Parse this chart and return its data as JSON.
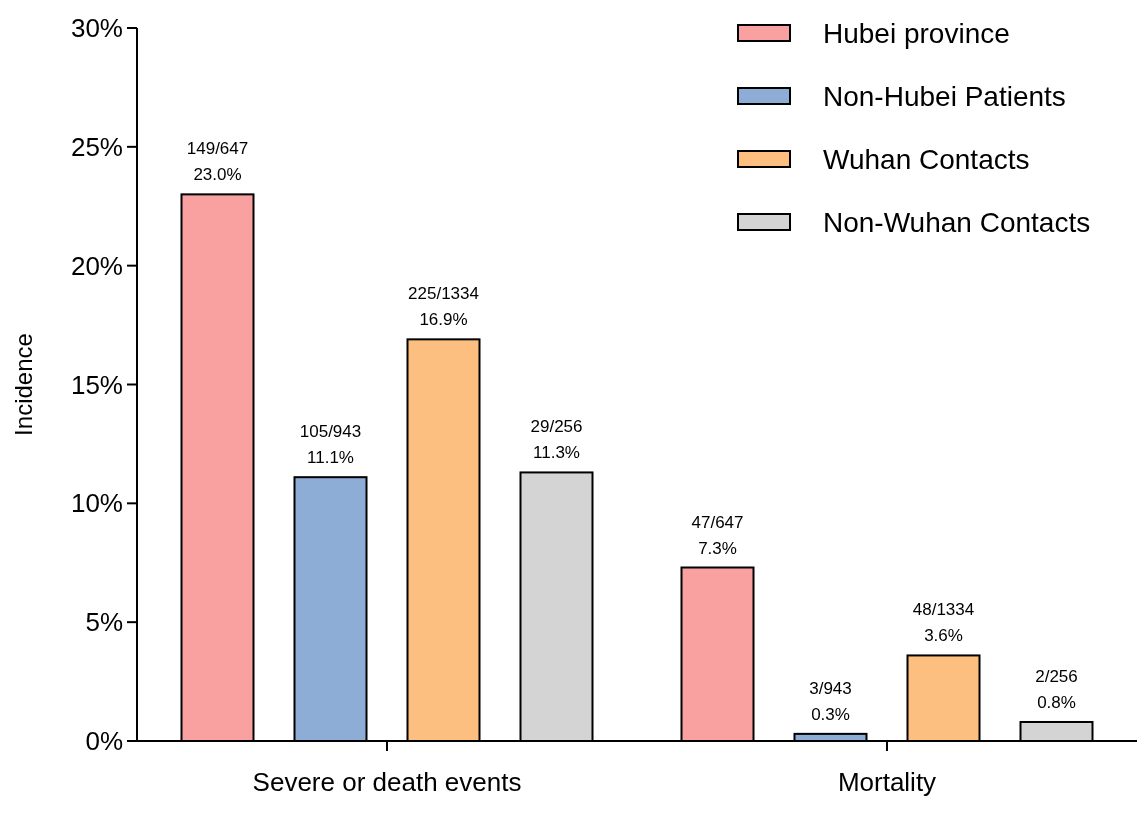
{
  "chart_data": {
    "type": "bar",
    "ylabel": "Incidence",
    "categories": [
      "Severe or death events",
      "Mortality"
    ],
    "series": [
      {
        "name": "Hubei province",
        "color": "#f9a1a1",
        "values": [
          23.0,
          7.3
        ],
        "value_labels": [
          "149/647\n23.0%",
          "47/647\n7.3%"
        ]
      },
      {
        "name": "Non-Hubei Patients",
        "color": "#8eadd6",
        "values": [
          11.1,
          0.3
        ],
        "value_labels": [
          "105/943\n11.1%",
          "3/943\n0.3%"
        ]
      },
      {
        "name": "Wuhan Contacts",
        "color": "#fdbf7f",
        "values": [
          16.9,
          3.6
        ],
        "value_labels": [
          "225/1334\n16.9%",
          "48/1334\n3.6%"
        ]
      },
      {
        "name": "Non-Wuhan Contacts",
        "color": "#d4d4d4",
        "values": [
          11.3,
          0.8
        ],
        "value_labels": [
          "29/256\n11.3%",
          "2/256\n0.8%"
        ]
      }
    ],
    "ylim": [
      0,
      30
    ],
    "yticks": [
      {
        "value": 0,
        "label": "0%"
      },
      {
        "value": 5,
        "label": "5%"
      },
      {
        "value": 10,
        "label": "10%"
      },
      {
        "value": 15,
        "label": "15%"
      },
      {
        "value": 20,
        "label": "20%"
      },
      {
        "value": 25,
        "label": "25%"
      },
      {
        "value": 30,
        "label": "30%"
      }
    ],
    "legend": "top right",
    "grid": false
  }
}
